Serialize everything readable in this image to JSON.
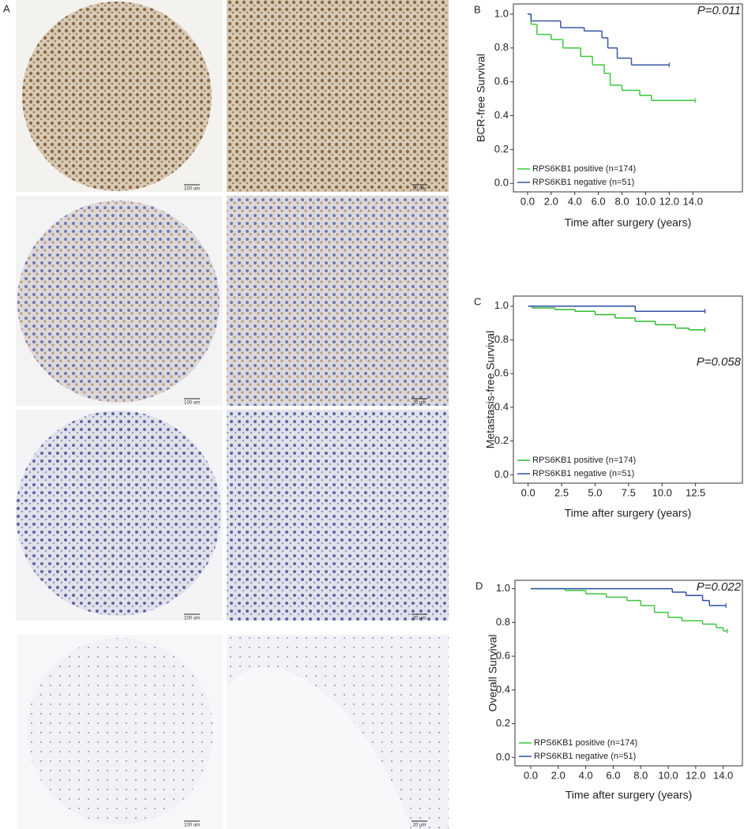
{
  "figure": {
    "panel_label": "A",
    "scale_bars": [
      "100 um",
      "20 um",
      "100 um",
      "20 um",
      "100 um",
      "20 um",
      "100 um",
      "20 um"
    ]
  },
  "chart_data": [
    {
      "type": "km",
      "panel_label": "B",
      "annotation": "P=0.011",
      "xlabel": "Time after surgery (years)",
      "ylabel": "BCR-free Survival",
      "xlim": [
        -1.2,
        18.2
      ],
      "ylim": [
        -0.05,
        1.06
      ],
      "legend": "lower left",
      "xticks": [
        {
          "value": 0,
          "label": "0.0"
        },
        {
          "value": 2,
          "label": "2.0"
        },
        {
          "value": 4,
          "label": "4.0"
        },
        {
          "value": 6,
          "label": "6.0"
        },
        {
          "value": 8,
          "label": "8.0"
        },
        {
          "value": 10,
          "label": "10.0"
        },
        {
          "value": 12,
          "label": "12.0"
        },
        {
          "value": 14,
          "label": "14.0"
        }
      ],
      "yticks": [
        {
          "value": 0,
          "label": "0.0"
        },
        {
          "value": 0.2,
          "label": "0.2"
        },
        {
          "value": 0.4,
          "label": "0.4"
        },
        {
          "value": 0.6,
          "label": "0.6"
        },
        {
          "value": 0.8,
          "label": "0.8"
        },
        {
          "value": 1,
          "label": "1.0"
        }
      ],
      "series": [
        {
          "name": "RPS6KB1 positive (n=174)",
          "color": "#3ec63e",
          "x": [
            0,
            0.3,
            0.8,
            2,
            3,
            4.5,
            5.5,
            6.5,
            7,
            8,
            9.5,
            10.5,
            14.2
          ],
          "values": [
            1,
            0.94,
            0.88,
            0.85,
            0.8,
            0.75,
            0.7,
            0.65,
            0.58,
            0.55,
            0.52,
            0.49,
            0.49
          ]
        },
        {
          "name": "RPS6KB1 negative (n=51)",
          "color": "#3a56a8",
          "x": [
            0,
            0.3,
            2.8,
            4.8,
            6.3,
            6.8,
            7.6,
            8.8,
            12
          ],
          "values": [
            1,
            0.96,
            0.92,
            0.9,
            0.86,
            0.8,
            0.74,
            0.7,
            0.7
          ]
        }
      ]
    },
    {
      "type": "km",
      "panel_label": "C",
      "annotation": "P=0.058",
      "xlabel": "Time after surgery (years)",
      "ylabel": "Metastasis-free Survival",
      "xlim": [
        -1.1,
        16
      ],
      "ylim": [
        -0.05,
        1.06
      ],
      "legend": "lower left",
      "xticks": [
        {
          "value": 0,
          "label": "0.0"
        },
        {
          "value": 2.5,
          "label": "2.5"
        },
        {
          "value": 5,
          "label": "5.0"
        },
        {
          "value": 7.5,
          "label": "7.5"
        },
        {
          "value": 10,
          "label": "10.0"
        },
        {
          "value": 12.5,
          "label": "12.5"
        }
      ],
      "yticks": [
        {
          "value": 0,
          "label": "0.0"
        },
        {
          "value": 0.2,
          "label": "0.2"
        },
        {
          "value": 0.4,
          "label": "0.4"
        },
        {
          "value": 0.6,
          "label": "0.6"
        },
        {
          "value": 0.8,
          "label": "0.8"
        },
        {
          "value": 1,
          "label": "1.0"
        }
      ],
      "series": [
        {
          "name": "RPS6KB1 positive (n=174)",
          "color": "#2fb82f",
          "x": [
            0,
            0.3,
            2,
            3.5,
            5,
            6.5,
            8,
            9.5,
            11,
            12,
            13.2
          ],
          "values": [
            1,
            0.99,
            0.98,
            0.97,
            0.95,
            0.93,
            0.91,
            0.89,
            0.87,
            0.86,
            0.86
          ]
        },
        {
          "name": "RPS6KB1 negative (n=51)",
          "color": "#2b4fa6",
          "x": [
            0,
            8,
            13.2
          ],
          "values": [
            1,
            0.97,
            0.97
          ]
        }
      ]
    },
    {
      "type": "km",
      "panel_label": "D",
      "annotation": "P=0.022",
      "xlabel": "Time after surgery (years)",
      "ylabel": "Overall Survival",
      "xlim": [
        -1.15,
        15.4
      ],
      "ylim": [
        -0.05,
        1.05
      ],
      "legend": "lower left",
      "xticks": [
        {
          "value": 0,
          "label": "0.0"
        },
        {
          "value": 2,
          "label": "2.0"
        },
        {
          "value": 4,
          "label": "4.0"
        },
        {
          "value": 6,
          "label": "6.0"
        },
        {
          "value": 8,
          "label": "8.0"
        },
        {
          "value": 10,
          "label": "10.0"
        },
        {
          "value": 12,
          "label": "12.0"
        },
        {
          "value": 14,
          "label": "14.0"
        }
      ],
      "yticks": [
        {
          "value": 0,
          "label": "0.0"
        },
        {
          "value": 0.2,
          "label": "0.2"
        },
        {
          "value": 0.4,
          "label": "0.4"
        },
        {
          "value": 0.6,
          "label": "0.6"
        },
        {
          "value": 0.8,
          "label": "0.8"
        },
        {
          "value": 1,
          "label": "1.0"
        }
      ],
      "series": [
        {
          "name": "RPS6KB1 positive (n=174)",
          "color": "#3ec63e",
          "x": [
            0,
            2.5,
            4,
            5.5,
            7,
            8,
            9,
            10,
            11,
            12.5,
            13.5,
            14,
            14.3
          ],
          "values": [
            1,
            0.99,
            0.97,
            0.95,
            0.93,
            0.9,
            0.86,
            0.83,
            0.81,
            0.79,
            0.77,
            0.75,
            0.75
          ]
        },
        {
          "name": "RPS6KB1 negative (n=51)",
          "color": "#2b4fa6",
          "x": [
            0,
            10.3,
            11.3,
            12.5,
            13,
            14.2
          ],
          "values": [
            1,
            0.98,
            0.96,
            0.93,
            0.9,
            0.9
          ]
        }
      ]
    }
  ]
}
